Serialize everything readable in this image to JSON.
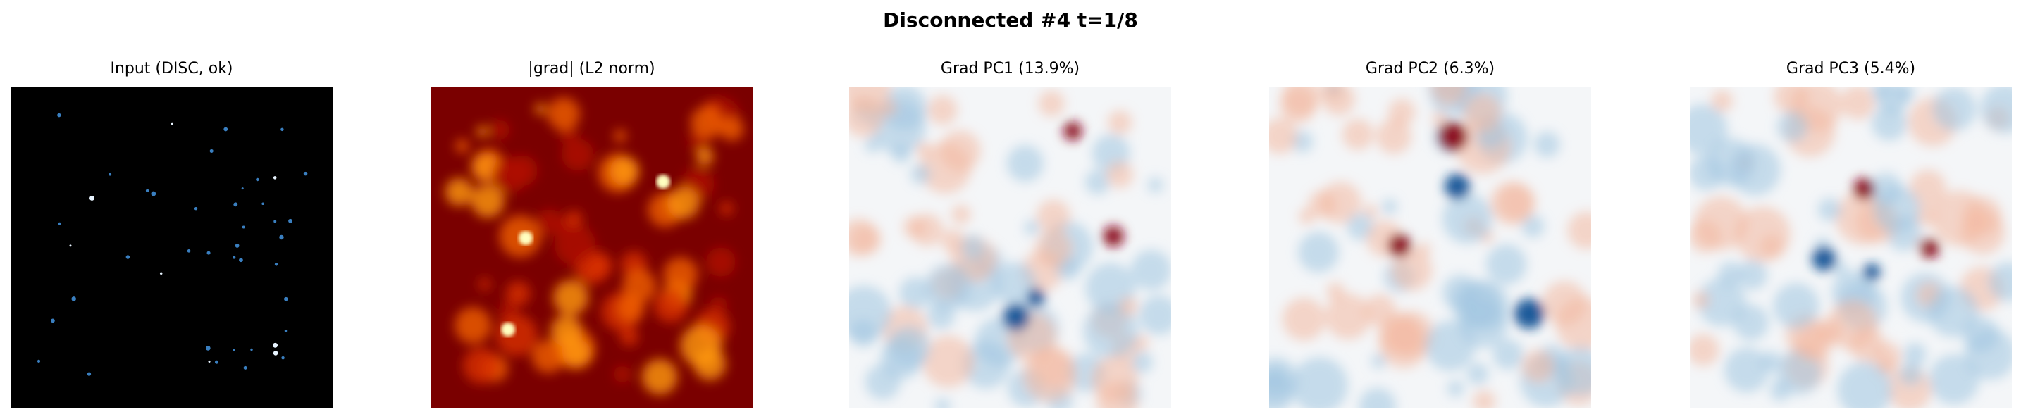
{
  "figure": {
    "title": "Disconnected #4  t=1/8",
    "panels": [
      {
        "title": "Input (DISC, ok)"
      },
      {
        "title": "|grad| (L2 norm)"
      },
      {
        "title": "Grad PC1 (13.9%)"
      },
      {
        "title": "Grad PC2 (6.3%)"
      },
      {
        "title": "Grad PC3 (5.4%)"
      }
    ]
  }
}
